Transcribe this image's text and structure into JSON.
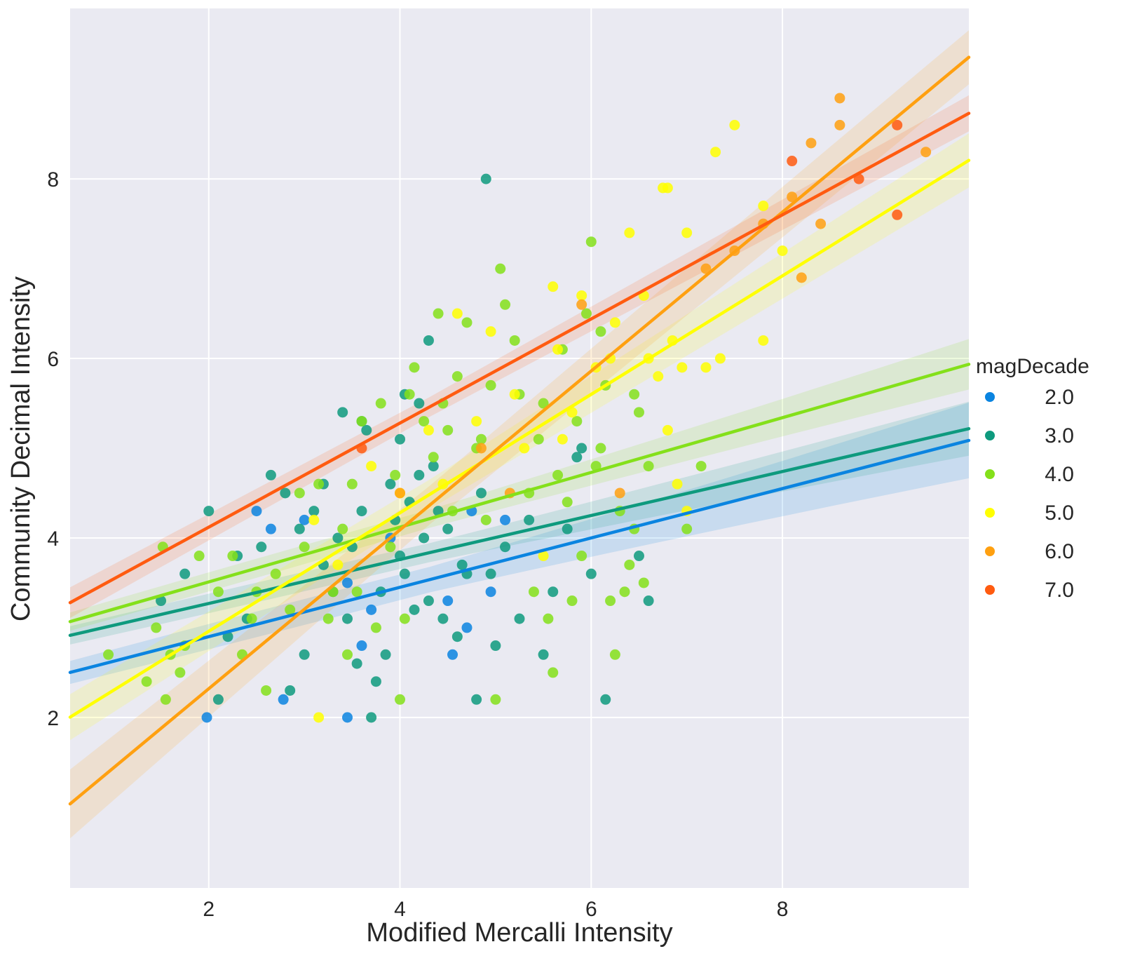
{
  "chart_data": {
    "type": "scatter",
    "xlabel": "Modified Mercalli Intensity",
    "ylabel": "Community Decimal Intensity",
    "xlim": [
      0.55,
      9.95
    ],
    "ylim": [
      0.1,
      9.9
    ],
    "xticks": [
      2,
      4,
      6,
      8
    ],
    "yticks": [
      2,
      4,
      6,
      8
    ],
    "grid": true,
    "legend": {
      "title": "magDecade",
      "placement": "right"
    },
    "series": [
      {
        "name": "2.0",
        "color": "#0a84e0",
        "fit": {
          "intercept": 2.35,
          "slope": 0.275,
          "band_near": 0.15,
          "band_far": 0.42
        },
        "points": [
          [
            1.98,
            2.0
          ],
          [
            2.5,
            4.3
          ],
          [
            2.65,
            4.1
          ],
          [
            2.78,
            2.2
          ],
          [
            3.45,
            2.0
          ],
          [
            3.45,
            3.5
          ],
          [
            3.6,
            2.8
          ],
          [
            3.7,
            3.2
          ],
          [
            4.5,
            3.3
          ],
          [
            4.55,
            2.7
          ],
          [
            4.7,
            3.0
          ],
          [
            4.75,
            4.3
          ],
          [
            4.95,
            3.4
          ],
          [
            5.1,
            4.2
          ],
          [
            3.9,
            4.0
          ],
          [
            3.0,
            4.2
          ]
        ]
      },
      {
        "name": "3.0",
        "color": "#0e9a7e",
        "fit": {
          "intercept": 2.78,
          "slope": 0.245,
          "band_near": 0.12,
          "band_far": 0.3
        },
        "points": [
          [
            4.9,
            8.0
          ],
          [
            4.3,
            6.2
          ],
          [
            3.4,
            5.4
          ],
          [
            3.6,
            5.3
          ],
          [
            4.05,
            5.6
          ],
          [
            4.2,
            5.5
          ],
          [
            2.65,
            4.7
          ],
          [
            1.5,
            3.3
          ],
          [
            1.75,
            3.6
          ],
          [
            2.0,
            4.3
          ],
          [
            2.2,
            2.9
          ],
          [
            2.4,
            3.1
          ],
          [
            2.55,
            3.9
          ],
          [
            2.8,
            4.5
          ],
          [
            2.95,
            4.1
          ],
          [
            3.1,
            4.3
          ],
          [
            3.2,
            3.7
          ],
          [
            3.3,
            3.4
          ],
          [
            3.35,
            4.0
          ],
          [
            3.45,
            3.1
          ],
          [
            3.55,
            2.6
          ],
          [
            3.6,
            4.3
          ],
          [
            3.7,
            2.0
          ],
          [
            3.75,
            2.4
          ],
          [
            3.8,
            3.4
          ],
          [
            3.85,
            2.7
          ],
          [
            3.9,
            4.6
          ],
          [
            3.95,
            4.2
          ],
          [
            4.0,
            3.8
          ],
          [
            4.05,
            3.6
          ],
          [
            4.1,
            4.4
          ],
          [
            4.15,
            3.2
          ],
          [
            4.2,
            4.7
          ],
          [
            4.25,
            4.0
          ],
          [
            4.3,
            3.3
          ],
          [
            4.35,
            4.8
          ],
          [
            4.45,
            3.1
          ],
          [
            4.5,
            4.1
          ],
          [
            4.6,
            2.9
          ],
          [
            4.65,
            3.7
          ],
          [
            4.8,
            2.2
          ],
          [
            4.85,
            4.5
          ],
          [
            4.95,
            3.6
          ],
          [
            5.0,
            2.8
          ],
          [
            5.1,
            3.9
          ],
          [
            5.25,
            3.1
          ],
          [
            5.35,
            4.2
          ],
          [
            5.5,
            2.7
          ],
          [
            5.6,
            3.4
          ],
          [
            5.75,
            4.1
          ],
          [
            5.85,
            4.9
          ],
          [
            6.0,
            3.6
          ],
          [
            6.15,
            2.2
          ],
          [
            6.5,
            3.8
          ],
          [
            6.6,
            3.3
          ],
          [
            2.3,
            3.8
          ],
          [
            3.0,
            2.7
          ],
          [
            3.2,
            4.6
          ],
          [
            3.5,
            3.9
          ],
          [
            4.4,
            4.3
          ],
          [
            4.7,
            3.6
          ],
          [
            5.9,
            5.0
          ],
          [
            2.85,
            2.3
          ],
          [
            2.1,
            2.2
          ],
          [
            3.65,
            5.2
          ],
          [
            4.0,
            5.1
          ]
        ]
      },
      {
        "name": "4.0",
        "color": "#84e01a",
        "fit": {
          "intercept": 2.9,
          "slope": 0.305,
          "band_near": 0.12,
          "band_far": 0.28
        },
        "points": [
          [
            0.95,
            2.7
          ],
          [
            1.35,
            2.4
          ],
          [
            1.45,
            3.0
          ],
          [
            1.52,
            3.9
          ],
          [
            1.55,
            2.2
          ],
          [
            1.6,
            2.7
          ],
          [
            1.7,
            2.5
          ],
          [
            1.75,
            2.8
          ],
          [
            1.9,
            3.8
          ],
          [
            2.1,
            3.4
          ],
          [
            2.25,
            3.8
          ],
          [
            2.35,
            2.7
          ],
          [
            2.45,
            3.1
          ],
          [
            2.6,
            2.3
          ],
          [
            2.7,
            3.6
          ],
          [
            2.85,
            3.2
          ],
          [
            3.0,
            3.9
          ],
          [
            3.15,
            4.6
          ],
          [
            3.3,
            3.4
          ],
          [
            3.4,
            4.1
          ],
          [
            3.5,
            4.6
          ],
          [
            3.55,
            3.4
          ],
          [
            3.6,
            5.3
          ],
          [
            3.75,
            3.0
          ],
          [
            3.8,
            5.5
          ],
          [
            3.95,
            4.7
          ],
          [
            4.0,
            2.2
          ],
          [
            4.1,
            5.6
          ],
          [
            4.15,
            5.9
          ],
          [
            4.25,
            5.3
          ],
          [
            4.35,
            4.9
          ],
          [
            4.4,
            6.5
          ],
          [
            4.5,
            5.2
          ],
          [
            4.6,
            5.8
          ],
          [
            4.7,
            6.4
          ],
          [
            4.8,
            5.0
          ],
          [
            4.9,
            4.2
          ],
          [
            4.95,
            5.7
          ],
          [
            5.0,
            2.2
          ],
          [
            5.05,
            7.0
          ],
          [
            5.1,
            6.6
          ],
          [
            5.2,
            6.2
          ],
          [
            5.25,
            5.6
          ],
          [
            5.35,
            4.5
          ],
          [
            5.45,
            5.1
          ],
          [
            5.55,
            3.1
          ],
          [
            5.6,
            2.5
          ],
          [
            5.7,
            6.1
          ],
          [
            5.8,
            3.3
          ],
          [
            5.85,
            5.3
          ],
          [
            5.95,
            6.5
          ],
          [
            6.0,
            7.3
          ],
          [
            6.05,
            4.8
          ],
          [
            6.1,
            6.3
          ],
          [
            6.15,
            5.7
          ],
          [
            6.2,
            3.3
          ],
          [
            6.25,
            2.7
          ],
          [
            6.3,
            4.3
          ],
          [
            6.4,
            3.7
          ],
          [
            6.5,
            5.4
          ],
          [
            6.55,
            3.5
          ],
          [
            6.6,
            4.8
          ],
          [
            7.15,
            4.8
          ],
          [
            7.0,
            4.1
          ],
          [
            6.45,
            5.6
          ],
          [
            6.35,
            3.4
          ],
          [
            5.75,
            4.4
          ],
          [
            5.5,
            5.5
          ],
          [
            5.4,
            3.4
          ],
          [
            4.85,
            5.1
          ],
          [
            4.45,
            5.5
          ],
          [
            4.05,
            3.1
          ],
          [
            3.45,
            2.7
          ],
          [
            2.95,
            4.5
          ],
          [
            2.5,
            3.4
          ],
          [
            6.1,
            5.0
          ],
          [
            5.9,
            3.8
          ],
          [
            4.55,
            4.3
          ],
          [
            3.9,
            3.9
          ],
          [
            3.25,
            3.1
          ],
          [
            5.65,
            4.7
          ],
          [
            6.45,
            4.1
          ]
        ]
      },
      {
        "name": "5.0",
        "color": "#ffff00",
        "fit": {
          "intercept": 1.64,
          "slope": 0.66,
          "band_near": 0.3,
          "band_far": 0.3
        },
        "points": [
          [
            3.15,
            2.0
          ],
          [
            3.1,
            4.2
          ],
          [
            3.35,
            3.7
          ],
          [
            3.7,
            4.8
          ],
          [
            4.0,
            4.5
          ],
          [
            4.3,
            5.2
          ],
          [
            4.6,
            6.5
          ],
          [
            4.8,
            5.3
          ],
          [
            4.95,
            6.3
          ],
          [
            5.2,
            5.6
          ],
          [
            5.5,
            3.8
          ],
          [
            5.6,
            6.8
          ],
          [
            5.7,
            5.1
          ],
          [
            5.9,
            6.7
          ],
          [
            6.05,
            5.9
          ],
          [
            6.2,
            6.0
          ],
          [
            6.4,
            7.4
          ],
          [
            6.55,
            6.7
          ],
          [
            6.7,
            5.8
          ],
          [
            6.75,
            7.9
          ],
          [
            6.8,
            7.9
          ],
          [
            6.85,
            6.2
          ],
          [
            6.95,
            5.9
          ],
          [
            7.0,
            7.4
          ],
          [
            7.2,
            5.9
          ],
          [
            7.3,
            8.3
          ],
          [
            7.35,
            6.0
          ],
          [
            7.5,
            8.6
          ],
          [
            7.8,
            7.7
          ],
          [
            8.0,
            7.2
          ],
          [
            7.8,
            6.2
          ],
          [
            6.9,
            4.6
          ],
          [
            7.0,
            4.3
          ],
          [
            5.8,
            5.4
          ],
          [
            5.3,
            5.0
          ],
          [
            4.45,
            4.6
          ],
          [
            6.6,
            6.0
          ],
          [
            6.8,
            5.2
          ],
          [
            6.25,
            6.4
          ],
          [
            5.65,
            6.1
          ]
        ]
      },
      {
        "name": "6.0",
        "color": "#ffa010",
        "fit": {
          "intercept": 0.55,
          "slope": 0.885,
          "band_near": 0.45,
          "band_far": 0.3
        },
        "points": [
          [
            4.0,
            4.5
          ],
          [
            4.85,
            5.0
          ],
          [
            5.15,
            4.5
          ],
          [
            5.9,
            6.6
          ],
          [
            6.3,
            4.5
          ],
          [
            7.2,
            7.0
          ],
          [
            7.5,
            7.2
          ],
          [
            7.8,
            7.5
          ],
          [
            8.1,
            7.8
          ],
          [
            8.3,
            8.4
          ],
          [
            8.4,
            7.5
          ],
          [
            8.6,
            8.6
          ],
          [
            8.6,
            8.9
          ],
          [
            9.5,
            8.3
          ],
          [
            8.2,
            6.9
          ]
        ]
      },
      {
        "name": "7.0",
        "color": "#ff5b10",
        "fit": {
          "intercept": 2.96,
          "slope": 0.58,
          "band_near": 0.2,
          "band_far": 0.2
        },
        "points": [
          [
            3.6,
            5.0
          ],
          [
            8.1,
            8.2
          ],
          [
            8.8,
            8.0
          ],
          [
            9.2,
            8.6
          ],
          [
            9.2,
            7.6
          ]
        ]
      }
    ]
  }
}
